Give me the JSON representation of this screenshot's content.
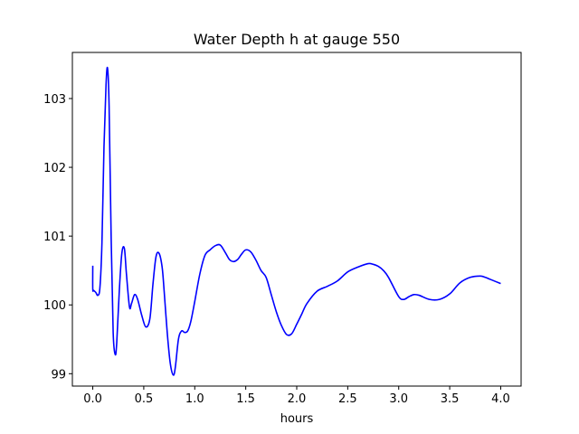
{
  "chart_data": {
    "type": "line",
    "title": "Water Depth h at gauge 550",
    "xlabel": "hours",
    "ylabel": "",
    "xlim": [
      -0.2,
      4.2
    ],
    "ylim": [
      98.82,
      103.67
    ],
    "grid": false,
    "legend": "none",
    "xticks": [
      0.0,
      0.5,
      1.0,
      1.5,
      2.0,
      2.5,
      3.0,
      3.5,
      4.0
    ],
    "xtick_labels": [
      "0.0",
      "0.5",
      "1.0",
      "1.5",
      "2.0",
      "2.5",
      "3.0",
      "3.5",
      "4.0"
    ],
    "yticks": [
      99,
      100,
      101,
      102,
      103
    ],
    "ytick_labels": [
      "99",
      "100",
      "101",
      "102",
      "103"
    ],
    "series": [
      {
        "color": "#0000ff",
        "x": [
          0.0,
          0.0,
          0.01,
          0.03,
          0.05,
          0.07,
          0.09,
          0.11,
          0.13,
          0.145,
          0.16,
          0.18,
          0.2,
          0.22,
          0.235,
          0.26,
          0.285,
          0.31,
          0.33,
          0.36,
          0.38,
          0.41,
          0.44,
          0.48,
          0.52,
          0.56,
          0.59,
          0.62,
          0.65,
          0.68,
          0.7,
          0.73,
          0.76,
          0.79,
          0.81,
          0.84,
          0.87,
          0.9,
          0.93,
          0.96,
          1.0,
          1.05,
          1.1,
          1.15,
          1.2,
          1.25,
          1.3,
          1.34,
          1.38,
          1.42,
          1.46,
          1.5,
          1.55,
          1.6,
          1.65,
          1.7,
          1.75,
          1.8,
          1.85,
          1.9,
          1.95,
          2.0,
          2.05,
          2.1,
          2.2,
          2.3,
          2.4,
          2.5,
          2.6,
          2.7,
          2.75,
          2.8,
          2.85,
          2.9,
          3.0,
          3.05,
          3.1,
          3.15,
          3.2,
          3.3,
          3.4,
          3.5,
          3.6,
          3.7,
          3.8,
          3.85,
          3.9,
          4.0
        ],
        "y": [
          100.57,
          100.23,
          100.21,
          100.18,
          100.14,
          100.25,
          100.9,
          102.3,
          103.2,
          103.44,
          102.9,
          101.0,
          99.6,
          99.28,
          99.45,
          100.2,
          100.75,
          100.82,
          100.45,
          99.97,
          100.02,
          100.15,
          100.08,
          99.85,
          99.68,
          99.8,
          100.3,
          100.7,
          100.75,
          100.55,
          100.2,
          99.6,
          99.15,
          98.98,
          99.1,
          99.5,
          99.62,
          99.6,
          99.62,
          99.75,
          100.05,
          100.45,
          100.72,
          100.8,
          100.86,
          100.87,
          100.76,
          100.66,
          100.63,
          100.66,
          100.74,
          100.8,
          100.77,
          100.65,
          100.5,
          100.4,
          100.15,
          99.9,
          99.7,
          99.57,
          99.58,
          99.72,
          99.87,
          100.02,
          100.2,
          100.27,
          100.35,
          100.48,
          100.55,
          100.6,
          100.59,
          100.56,
          100.5,
          100.4,
          100.12,
          100.08,
          100.12,
          100.15,
          100.14,
          100.08,
          100.08,
          100.16,
          100.32,
          100.4,
          100.42,
          100.4,
          100.37,
          100.31
        ]
      }
    ]
  }
}
